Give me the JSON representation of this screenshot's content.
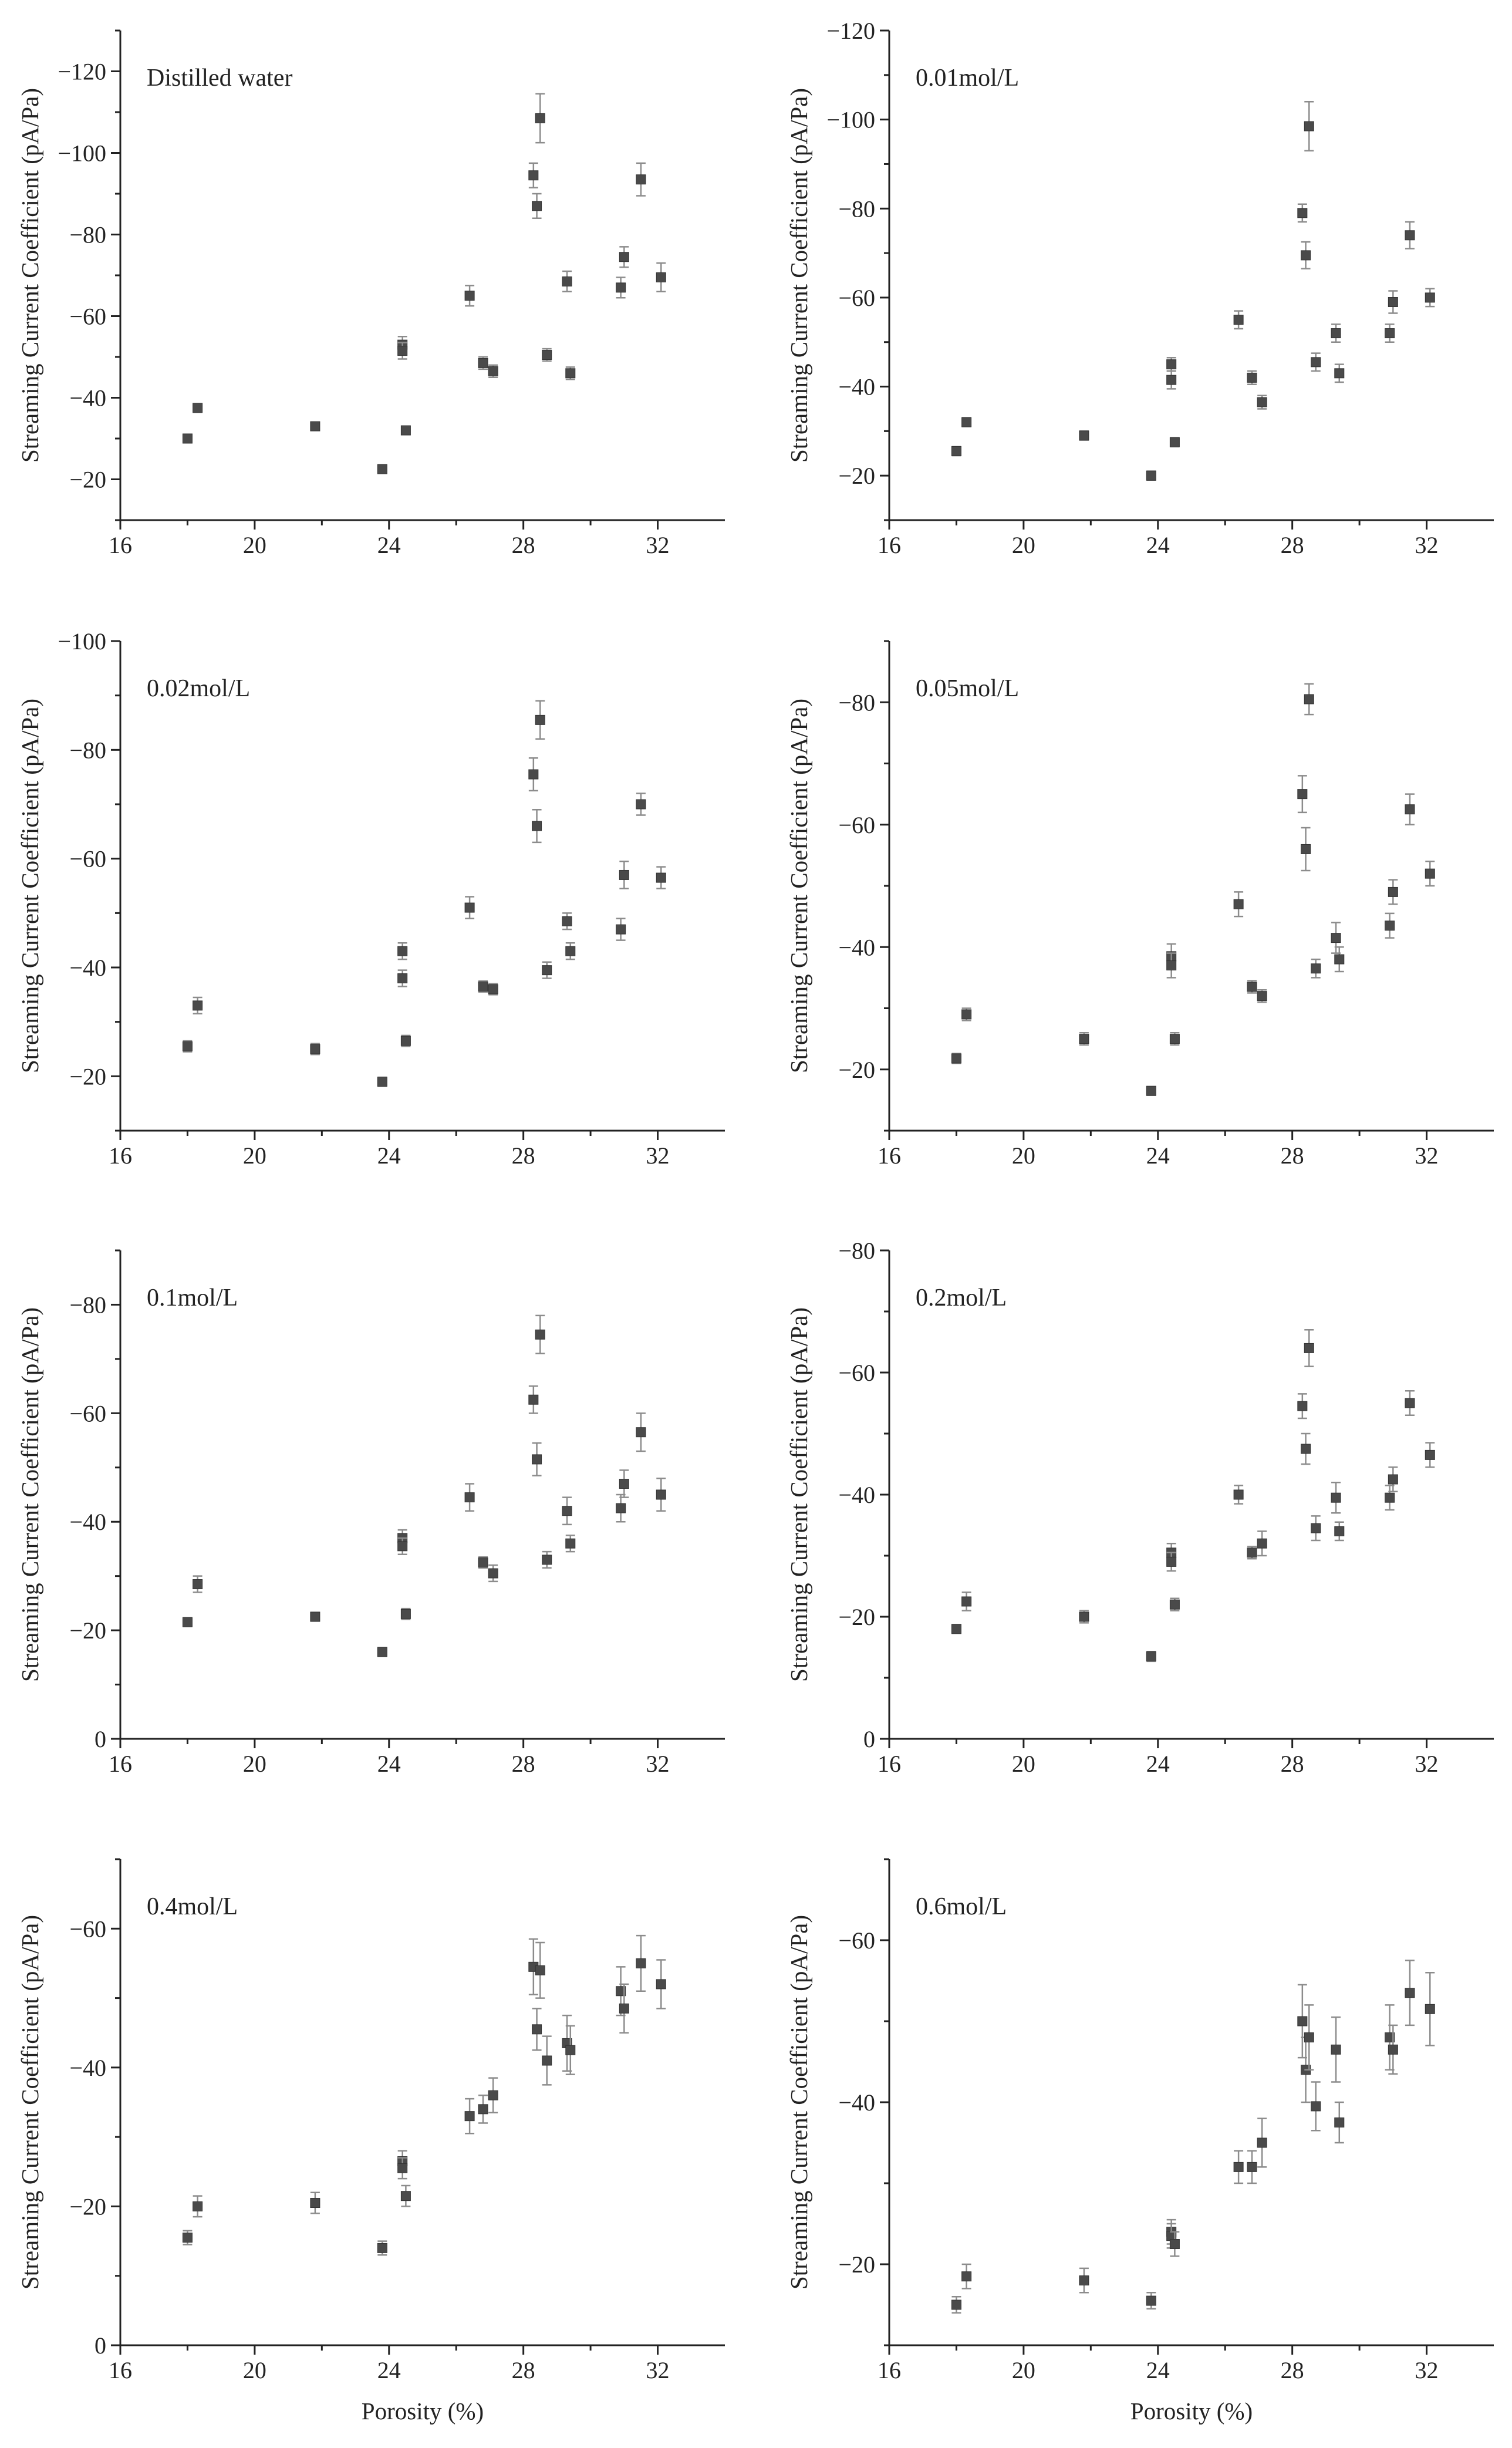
{
  "figure": {
    "x_axis_title": "Porosity (%)",
    "y_axis_title": "Streaming Current Coefficient (pA/Pa)"
  },
  "chart_data": [
    {
      "type": "scatter",
      "panel_label": "Distilled water",
      "xlabel": "",
      "ylabel": "Streaming Current Coefficient (pA/Pa)",
      "xlim": [
        16,
        34
      ],
      "ylim": [
        -10,
        -130
      ],
      "x_ticks": [
        16,
        20,
        24,
        28,
        32
      ],
      "y_ticks": [
        -20,
        -40,
        -60,
        -80,
        -100,
        -120
      ],
      "points": [
        {
          "x": 18.0,
          "y": -30.0,
          "err": 1.0
        },
        {
          "x": 18.3,
          "y": -37.5,
          "err": 1.0
        },
        {
          "x": 21.8,
          "y": -33.0,
          "err": 1.0
        },
        {
          "x": 23.8,
          "y": -22.5,
          "err": 1.0
        },
        {
          "x": 24.4,
          "y": -53.0,
          "err": 2.0
        },
        {
          "x": 24.4,
          "y": -51.5,
          "err": 2.0
        },
        {
          "x": 24.5,
          "y": -32.0,
          "err": 1.0
        },
        {
          "x": 26.4,
          "y": -65.0,
          "err": 2.5
        },
        {
          "x": 26.8,
          "y": -48.5,
          "err": 1.5
        },
        {
          "x": 27.1,
          "y": -46.5,
          "err": 1.5
        },
        {
          "x": 28.3,
          "y": -94.5,
          "err": 3.0
        },
        {
          "x": 28.4,
          "y": -87.0,
          "err": 3.0
        },
        {
          "x": 28.5,
          "y": -108.5,
          "err": 6.0
        },
        {
          "x": 28.7,
          "y": -50.5,
          "err": 1.5
        },
        {
          "x": 29.3,
          "y": -68.5,
          "err": 2.5
        },
        {
          "x": 29.4,
          "y": -46.0,
          "err": 1.5
        },
        {
          "x": 30.9,
          "y": -67.0,
          "err": 2.5
        },
        {
          "x": 31.0,
          "y": -74.5,
          "err": 2.5
        },
        {
          "x": 31.5,
          "y": -93.5,
          "err": 4.0
        },
        {
          "x": 32.1,
          "y": -69.5,
          "err": 3.5
        }
      ]
    },
    {
      "type": "scatter",
      "panel_label": "0.01mol/L",
      "xlabel": "",
      "ylabel": "Streaming Current Coefficient (pA/Pa)",
      "xlim": [
        16,
        34
      ],
      "ylim": [
        -10,
        -120
      ],
      "x_ticks": [
        16,
        20,
        24,
        28,
        32
      ],
      "y_ticks": [
        -20,
        -40,
        -60,
        -80,
        -100,
        -120
      ],
      "points": [
        {
          "x": 18.0,
          "y": -25.5,
          "err": 1.0
        },
        {
          "x": 18.3,
          "y": -32.0,
          "err": 1.0
        },
        {
          "x": 21.8,
          "y": -29.0,
          "err": 1.0
        },
        {
          "x": 23.8,
          "y": -20.0,
          "err": 1.0
        },
        {
          "x": 24.4,
          "y": -45.0,
          "err": 1.5
        },
        {
          "x": 24.4,
          "y": -41.5,
          "err": 2.0
        },
        {
          "x": 24.5,
          "y": -27.5,
          "err": 1.0
        },
        {
          "x": 26.4,
          "y": -55.0,
          "err": 2.0
        },
        {
          "x": 26.8,
          "y": -42.0,
          "err": 1.5
        },
        {
          "x": 27.1,
          "y": -36.5,
          "err": 1.5
        },
        {
          "x": 28.3,
          "y": -79.0,
          "err": 2.0
        },
        {
          "x": 28.4,
          "y": -69.5,
          "err": 3.0
        },
        {
          "x": 28.5,
          "y": -98.5,
          "err": 5.5
        },
        {
          "x": 28.7,
          "y": -45.5,
          "err": 2.0
        },
        {
          "x": 29.3,
          "y": -52.0,
          "err": 2.0
        },
        {
          "x": 29.4,
          "y": -43.0,
          "err": 2.0
        },
        {
          "x": 30.9,
          "y": -52.0,
          "err": 2.0
        },
        {
          "x": 31.0,
          "y": -59.0,
          "err": 2.5
        },
        {
          "x": 31.5,
          "y": -74.0,
          "err": 3.0
        },
        {
          "x": 32.1,
          "y": -60.0,
          "err": 2.0
        }
      ]
    },
    {
      "type": "scatter",
      "panel_label": "0.02mol/L",
      "xlabel": "",
      "ylabel": "Streaming Current Coefficient (pA/Pa)",
      "xlim": [
        16,
        34
      ],
      "ylim": [
        -10,
        -100
      ],
      "x_ticks": [
        16,
        20,
        24,
        28,
        32
      ],
      "y_ticks": [
        -20,
        -40,
        -60,
        -80,
        -100
      ],
      "points": [
        {
          "x": 18.0,
          "y": -25.5,
          "err": 1.0
        },
        {
          "x": 18.3,
          "y": -33.0,
          "err": 1.5
        },
        {
          "x": 21.8,
          "y": -25.0,
          "err": 1.0
        },
        {
          "x": 23.8,
          "y": -19.0,
          "err": 0.8
        },
        {
          "x": 24.4,
          "y": -43.0,
          "err": 1.5
        },
        {
          "x": 24.4,
          "y": -38.0,
          "err": 1.5
        },
        {
          "x": 24.5,
          "y": -26.5,
          "err": 1.0
        },
        {
          "x": 26.4,
          "y": -51.0,
          "err": 2.0
        },
        {
          "x": 26.8,
          "y": -36.5,
          "err": 1.0
        },
        {
          "x": 27.1,
          "y": -36.0,
          "err": 1.0
        },
        {
          "x": 28.3,
          "y": -75.5,
          "err": 3.0
        },
        {
          "x": 28.4,
          "y": -66.0,
          "err": 3.0
        },
        {
          "x": 28.5,
          "y": -85.5,
          "err": 3.5
        },
        {
          "x": 28.7,
          "y": -39.5,
          "err": 1.5
        },
        {
          "x": 29.3,
          "y": -48.5,
          "err": 1.5
        },
        {
          "x": 29.4,
          "y": -43.0,
          "err": 1.5
        },
        {
          "x": 30.9,
          "y": -47.0,
          "err": 2.0
        },
        {
          "x": 31.0,
          "y": -57.0,
          "err": 2.5
        },
        {
          "x": 31.5,
          "y": -70.0,
          "err": 2.0
        },
        {
          "x": 32.1,
          "y": -56.5,
          "err": 2.0
        }
      ]
    },
    {
      "type": "scatter",
      "panel_label": "0.05mol/L",
      "xlabel": "",
      "ylabel": "Streaming Current Coefficient (pA/Pa)",
      "xlim": [
        16,
        34
      ],
      "ylim": [
        -10,
        -90
      ],
      "x_ticks": [
        16,
        20,
        24,
        28,
        32
      ],
      "y_ticks": [
        -20,
        -40,
        -60,
        -80
      ],
      "points": [
        {
          "x": 18.0,
          "y": -21.8,
          "err": 0.8
        },
        {
          "x": 18.3,
          "y": -29.0,
          "err": 1.0
        },
        {
          "x": 21.8,
          "y": -25.0,
          "err": 1.0
        },
        {
          "x": 23.8,
          "y": -16.5,
          "err": 0.7
        },
        {
          "x": 24.4,
          "y": -38.5,
          "err": 2.0
        },
        {
          "x": 24.4,
          "y": -37.0,
          "err": 2.0
        },
        {
          "x": 24.5,
          "y": -25.0,
          "err": 1.0
        },
        {
          "x": 26.4,
          "y": -47.0,
          "err": 2.0
        },
        {
          "x": 26.8,
          "y": -33.5,
          "err": 1.0
        },
        {
          "x": 27.1,
          "y": -32.0,
          "err": 1.0
        },
        {
          "x": 28.3,
          "y": -65.0,
          "err": 3.0
        },
        {
          "x": 28.4,
          "y": -56.0,
          "err": 3.5
        },
        {
          "x": 28.5,
          "y": -80.5,
          "err": 2.5
        },
        {
          "x": 28.7,
          "y": -36.5,
          "err": 1.5
        },
        {
          "x": 29.3,
          "y": -41.5,
          "err": 2.5
        },
        {
          "x": 29.4,
          "y": -38.0,
          "err": 2.0
        },
        {
          "x": 30.9,
          "y": -43.5,
          "err": 2.0
        },
        {
          "x": 31.0,
          "y": -49.0,
          "err": 2.0
        },
        {
          "x": 31.5,
          "y": -62.5,
          "err": 2.5
        },
        {
          "x": 32.1,
          "y": -52.0,
          "err": 2.0
        }
      ]
    },
    {
      "type": "scatter",
      "panel_label": "0.1mol/L",
      "xlabel": "",
      "ylabel": "Streaming Current Coefficient (pA/Pa)",
      "xlim": [
        16,
        34
      ],
      "ylim": [
        0,
        -90
      ],
      "x_ticks": [
        16,
        20,
        24,
        28,
        32
      ],
      "y_ticks": [
        0,
        -20,
        -40,
        -60,
        -80
      ],
      "points": [
        {
          "x": 18.0,
          "y": -21.5,
          "err": 0.8
        },
        {
          "x": 18.3,
          "y": -28.5,
          "err": 1.5
        },
        {
          "x": 21.8,
          "y": -22.5,
          "err": 0.8
        },
        {
          "x": 23.8,
          "y": -16.0,
          "err": 0.8
        },
        {
          "x": 24.4,
          "y": -37.0,
          "err": 1.5
        },
        {
          "x": 24.4,
          "y": -35.5,
          "err": 1.5
        },
        {
          "x": 24.5,
          "y": -23.0,
          "err": 1.0
        },
        {
          "x": 26.4,
          "y": -44.5,
          "err": 2.5
        },
        {
          "x": 26.8,
          "y": -32.5,
          "err": 1.0
        },
        {
          "x": 27.1,
          "y": -30.5,
          "err": 1.5
        },
        {
          "x": 28.3,
          "y": -62.5,
          "err": 2.5
        },
        {
          "x": 28.4,
          "y": -51.5,
          "err": 3.0
        },
        {
          "x": 28.5,
          "y": -74.5,
          "err": 3.5
        },
        {
          "x": 28.7,
          "y": -33.0,
          "err": 1.5
        },
        {
          "x": 29.3,
          "y": -42.0,
          "err": 2.5
        },
        {
          "x": 29.4,
          "y": -36.0,
          "err": 1.5
        },
        {
          "x": 30.9,
          "y": -42.5,
          "err": 2.5
        },
        {
          "x": 31.0,
          "y": -47.0,
          "err": 2.5
        },
        {
          "x": 31.5,
          "y": -56.5,
          "err": 3.5
        },
        {
          "x": 32.1,
          "y": -45.0,
          "err": 3.0
        }
      ]
    },
    {
      "type": "scatter",
      "panel_label": "0.2mol/L",
      "xlabel": "",
      "ylabel": "Streaming Current Coefficient (pA/Pa)",
      "xlim": [
        16,
        34
      ],
      "ylim": [
        0,
        -80
      ],
      "x_ticks": [
        16,
        20,
        24,
        28,
        32
      ],
      "y_ticks": [
        0,
        -20,
        -40,
        -60,
        -80
      ],
      "points": [
        {
          "x": 18.0,
          "y": -18.0,
          "err": 0.7
        },
        {
          "x": 18.3,
          "y": -22.5,
          "err": 1.5
        },
        {
          "x": 21.8,
          "y": -20.0,
          "err": 1.0
        },
        {
          "x": 23.8,
          "y": -13.5,
          "err": 0.8
        },
        {
          "x": 24.4,
          "y": -30.5,
          "err": 1.5
        },
        {
          "x": 24.4,
          "y": -29.0,
          "err": 1.5
        },
        {
          "x": 24.5,
          "y": -22.0,
          "err": 1.0
        },
        {
          "x": 26.4,
          "y": -40.0,
          "err": 1.5
        },
        {
          "x": 26.8,
          "y": -30.5,
          "err": 1.0
        },
        {
          "x": 27.1,
          "y": -32.0,
          "err": 2.0
        },
        {
          "x": 28.3,
          "y": -54.5,
          "err": 2.0
        },
        {
          "x": 28.4,
          "y": -47.5,
          "err": 2.5
        },
        {
          "x": 28.5,
          "y": -64.0,
          "err": 3.0
        },
        {
          "x": 28.7,
          "y": -34.5,
          "err": 2.0
        },
        {
          "x": 29.3,
          "y": -39.5,
          "err": 2.5
        },
        {
          "x": 29.4,
          "y": -34.0,
          "err": 1.5
        },
        {
          "x": 30.9,
          "y": -39.5,
          "err": 2.0
        },
        {
          "x": 31.0,
          "y": -42.5,
          "err": 2.0
        },
        {
          "x": 31.5,
          "y": -55.0,
          "err": 2.0
        },
        {
          "x": 32.1,
          "y": -46.5,
          "err": 2.0
        }
      ]
    },
    {
      "type": "scatter",
      "panel_label": "0.4mol/L",
      "xlabel": "Porosity (%)",
      "ylabel": "Streaming Current Coefficient (pA/Pa)",
      "xlim": [
        16,
        34
      ],
      "ylim": [
        0,
        -70
      ],
      "x_ticks": [
        16,
        20,
        24,
        28,
        32
      ],
      "y_ticks": [
        0,
        -20,
        -40,
        -60
      ],
      "points": [
        {
          "x": 18.0,
          "y": -15.5,
          "err": 1.0
        },
        {
          "x": 18.3,
          "y": -20.0,
          "err": 1.5
        },
        {
          "x": 21.8,
          "y": -20.5,
          "err": 1.5
        },
        {
          "x": 23.8,
          "y": -14.0,
          "err": 1.0
        },
        {
          "x": 24.4,
          "y": -26.5,
          "err": 1.5
        },
        {
          "x": 24.4,
          "y": -25.5,
          "err": 1.5
        },
        {
          "x": 24.5,
          "y": -21.5,
          "err": 1.5
        },
        {
          "x": 26.4,
          "y": -33.0,
          "err": 2.5
        },
        {
          "x": 26.8,
          "y": -34.0,
          "err": 2.0
        },
        {
          "x": 27.1,
          "y": -36.0,
          "err": 2.5
        },
        {
          "x": 28.3,
          "y": -54.5,
          "err": 4.0
        },
        {
          "x": 28.4,
          "y": -45.5,
          "err": 3.0
        },
        {
          "x": 28.5,
          "y": -54.0,
          "err": 4.0
        },
        {
          "x": 28.7,
          "y": -41.0,
          "err": 3.5
        },
        {
          "x": 29.3,
          "y": -43.5,
          "err": 4.0
        },
        {
          "x": 29.4,
          "y": -42.5,
          "err": 3.5
        },
        {
          "x": 30.9,
          "y": -51.0,
          "err": 3.5
        },
        {
          "x": 31.0,
          "y": -48.5,
          "err": 3.5
        },
        {
          "x": 31.5,
          "y": -55.0,
          "err": 4.0
        },
        {
          "x": 32.1,
          "y": -52.0,
          "err": 3.5
        }
      ]
    },
    {
      "type": "scatter",
      "panel_label": "0.6mol/L",
      "xlabel": "Porosity (%)",
      "ylabel": "Streaming Current Coefficient (pA/Pa)",
      "xlim": [
        16,
        34
      ],
      "ylim": [
        -10,
        -70
      ],
      "x_ticks": [
        16,
        20,
        24,
        28,
        32
      ],
      "y_ticks": [
        -20,
        -40,
        -60
      ],
      "points": [
        {
          "x": 18.0,
          "y": -15.0,
          "err": 1.0
        },
        {
          "x": 18.3,
          "y": -18.5,
          "err": 1.5
        },
        {
          "x": 21.8,
          "y": -18.0,
          "err": 1.5
        },
        {
          "x": 23.8,
          "y": -15.5,
          "err": 1.0
        },
        {
          "x": 24.4,
          "y": -24.0,
          "err": 1.5
        },
        {
          "x": 24.4,
          "y": -23.5,
          "err": 1.5
        },
        {
          "x": 24.5,
          "y": -22.5,
          "err": 1.5
        },
        {
          "x": 26.4,
          "y": -32.0,
          "err": 2.0
        },
        {
          "x": 26.8,
          "y": -32.0,
          "err": 2.0
        },
        {
          "x": 27.1,
          "y": -35.0,
          "err": 3.0
        },
        {
          "x": 28.3,
          "y": -50.0,
          "err": 4.5
        },
        {
          "x": 28.4,
          "y": -44.0,
          "err": 4.0
        },
        {
          "x": 28.5,
          "y": -48.0,
          "err": 4.0
        },
        {
          "x": 28.7,
          "y": -39.5,
          "err": 3.0
        },
        {
          "x": 29.3,
          "y": -46.5,
          "err": 4.0
        },
        {
          "x": 29.4,
          "y": -37.5,
          "err": 2.5
        },
        {
          "x": 30.9,
          "y": -48.0,
          "err": 4.0
        },
        {
          "x": 31.0,
          "y": -46.5,
          "err": 3.0
        },
        {
          "x": 31.5,
          "y": -53.5,
          "err": 4.0
        },
        {
          "x": 32.1,
          "y": -51.5,
          "err": 4.5
        }
      ]
    }
  ]
}
